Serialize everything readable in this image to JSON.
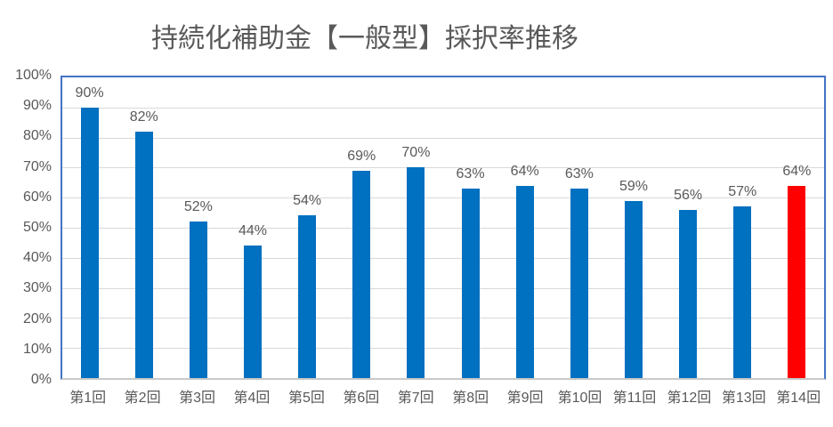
{
  "title": "持続化補助金【一般型】採択率推移",
  "colors": {
    "bar_blue": "#0070C0",
    "bar_highlight": "#FF0000",
    "text_gray": "#595959",
    "gridline": "#D9D9D9",
    "plot_border": "#4472C4",
    "axis_line": "#C9C9C9",
    "background": "#FFFFFF"
  },
  "y_axis": {
    "ticks": [
      "100%",
      "90%",
      "80%",
      "70%",
      "60%",
      "50%",
      "40%",
      "30%",
      "20%",
      "10%",
      "0%"
    ],
    "min": 0,
    "max": 100,
    "step": 10
  },
  "chart_data": {
    "type": "bar",
    "title": "持続化補助金【一般型】採択率推移",
    "categories": [
      "第1回",
      "第2回",
      "第3回",
      "第4回",
      "第5回",
      "第6回",
      "第7回",
      "第8回",
      "第9回",
      "第10回",
      "第11回",
      "第12回",
      "第13回",
      "第14回"
    ],
    "values": [
      90,
      82,
      52,
      44,
      54,
      69,
      70,
      63,
      64,
      63,
      59,
      56,
      57,
      64
    ],
    "data_labels": [
      "90%",
      "82%",
      "52%",
      "44%",
      "54%",
      "69%",
      "70%",
      "63%",
      "64%",
      "63%",
      "59%",
      "56%",
      "57%",
      "64%"
    ],
    "bar_colors": [
      "#0070C0",
      "#0070C0",
      "#0070C0",
      "#0070C0",
      "#0070C0",
      "#0070C0",
      "#0070C0",
      "#0070C0",
      "#0070C0",
      "#0070C0",
      "#0070C0",
      "#0070C0",
      "#0070C0",
      "#FF0000"
    ],
    "xlabel": "",
    "ylabel": "",
    "ylim": [
      0,
      100
    ],
    "grid": true,
    "legend": false,
    "legend_position": "none"
  }
}
